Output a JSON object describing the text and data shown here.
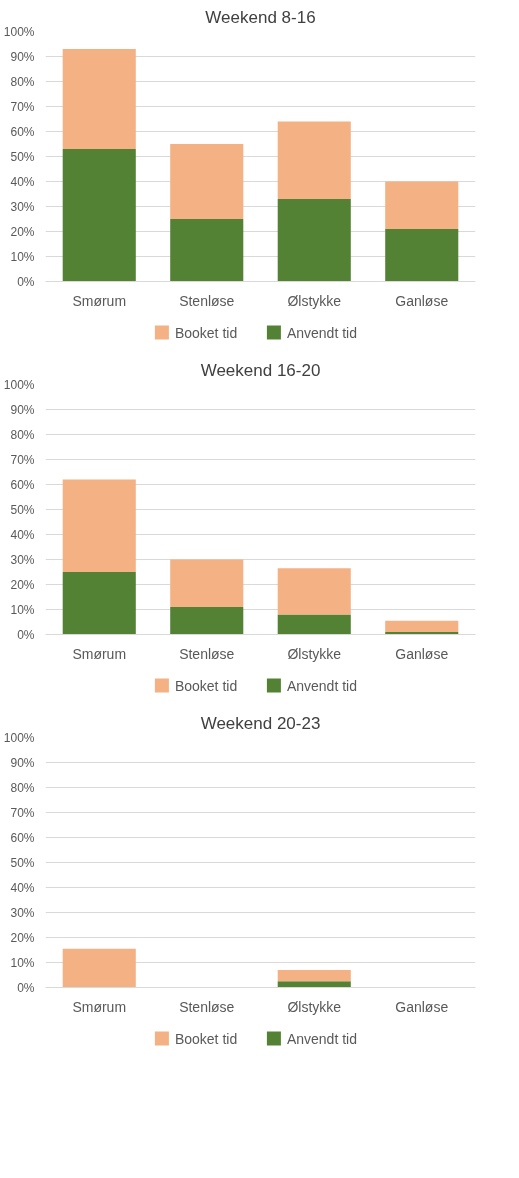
{
  "chart_data": [
    {
      "type": "bar",
      "title": "Weekend 8-16",
      "stacked": true,
      "legend": "bottom",
      "grid": "y",
      "categories": [
        "Smørum",
        "Stenløse",
        "Ølstykke",
        "Ganløse"
      ],
      "series": [
        {
          "name": "Anvendt tid",
          "color": "#548235",
          "values": [
            53,
            25,
            33,
            21
          ]
        },
        {
          "name": "Booket tid",
          "color": "#f4b183",
          "values": [
            40,
            30,
            31,
            19
          ]
        }
      ],
      "ylim": [
        0,
        100
      ],
      "yticks": [
        {
          "value": 0,
          "label": "0%"
        },
        {
          "value": 10,
          "label": "10%"
        },
        {
          "value": 20,
          "label": "20%"
        },
        {
          "value": 30,
          "label": "30%"
        },
        {
          "value": 40,
          "label": "40%"
        },
        {
          "value": 50,
          "label": "50%"
        },
        {
          "value": 60,
          "label": "60%"
        },
        {
          "value": 70,
          "label": "70%"
        },
        {
          "value": 80,
          "label": "80%"
        },
        {
          "value": 90,
          "label": "90%"
        },
        {
          "value": 100,
          "label": "100%"
        }
      ]
    },
    {
      "type": "bar",
      "title": "Weekend 16-20",
      "stacked": true,
      "legend": "bottom",
      "grid": "y",
      "categories": [
        "Smørum",
        "Stenløse",
        "Ølstykke",
        "Ganløse"
      ],
      "series": [
        {
          "name": "Anvendt tid",
          "color": "#548235",
          "values": [
            25,
            11,
            8,
            1
          ]
        },
        {
          "name": "Booket tid",
          "color": "#f4b183",
          "values": [
            37,
            19,
            18.5,
            4.5
          ]
        }
      ],
      "ylim": [
        0,
        100
      ],
      "yticks": [
        {
          "value": 0,
          "label": "0%"
        },
        {
          "value": 10,
          "label": "10%"
        },
        {
          "value": 20,
          "label": "20%"
        },
        {
          "value": 30,
          "label": "30%"
        },
        {
          "value": 40,
          "label": "40%"
        },
        {
          "value": 50,
          "label": "50%"
        },
        {
          "value": 60,
          "label": "60%"
        },
        {
          "value": 70,
          "label": "70%"
        },
        {
          "value": 80,
          "label": "80%"
        },
        {
          "value": 90,
          "label": "90%"
        },
        {
          "value": 100,
          "label": "100%"
        }
      ]
    },
    {
      "type": "bar",
      "title": "Weekend 20-23",
      "stacked": true,
      "legend": "bottom",
      "grid": "y",
      "categories": [
        "Smørum",
        "Stenløse",
        "Ølstykke",
        "Ganløse"
      ],
      "series": [
        {
          "name": "Anvendt tid",
          "color": "#548235",
          "values": [
            0,
            0,
            2.5,
            0
          ]
        },
        {
          "name": "Booket tid",
          "color": "#f4b183",
          "values": [
            15.5,
            0,
            4.5,
            0
          ]
        }
      ],
      "ylim": [
        0,
        100
      ],
      "yticks": [
        {
          "value": 0,
          "label": "0%"
        },
        {
          "value": 10,
          "label": "10%"
        },
        {
          "value": 20,
          "label": "20%"
        },
        {
          "value": 30,
          "label": "30%"
        },
        {
          "value": 40,
          "label": "40%"
        },
        {
          "value": 50,
          "label": "50%"
        },
        {
          "value": 60,
          "label": "60%"
        },
        {
          "value": 70,
          "label": "70%"
        },
        {
          "value": 80,
          "label": "80%"
        },
        {
          "value": 90,
          "label": "90%"
        },
        {
          "value": 100,
          "label": "100%"
        }
      ]
    }
  ]
}
